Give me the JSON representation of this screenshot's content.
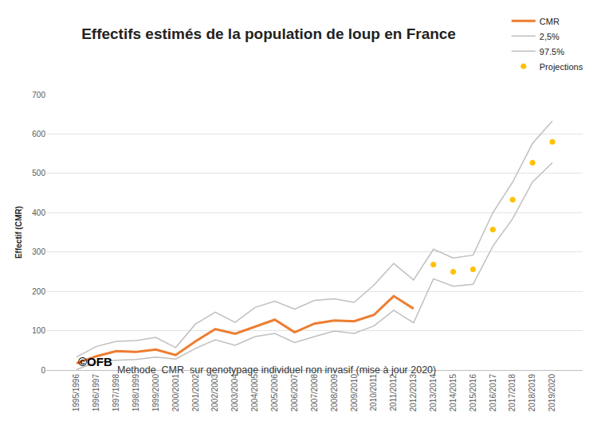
{
  "chart_data": {
    "type": "line",
    "title": "Effectifs estimés de la population de loup en France",
    "subtitle": "Methode  CMR  sur genotypage individuel non invasif (mise à jour 2020)",
    "y_label": "Effectif (CMR)",
    "annotation": "©OFB",
    "categories": [
      "1995/1996",
      "1996/1997",
      "1997/1998",
      "1998/1999",
      "1999/2000",
      "2000/2001",
      "2001/2002",
      "2002/2003",
      "2003/2004",
      "2004/2005",
      "2005/2006",
      "2006/2007",
      "2007/2008",
      "2008/2009",
      "2009/2010",
      "2010/2011",
      "2011/2012",
      "2012/2013",
      "2013/2014",
      "2014/2015",
      "2015/2016",
      "2016/2017",
      "2017/2018",
      "2018/2019",
      "2019/2020"
    ],
    "series": [
      {
        "name": "CMR",
        "type": "line",
        "color": "#ED7D31",
        "line_style": "solid",
        "values": [
          17,
          35,
          48,
          46,
          52,
          38,
          73,
          104,
          92,
          110,
          128,
          96,
          118,
          126,
          124,
          140,
          188,
          156,
          null,
          null,
          null,
          null,
          null,
          null,
          null
        ]
      },
      {
        "name": "2,5%",
        "type": "line",
        "color": "#BFBFBF",
        "line_style": "solid",
        "values": [
          1,
          20,
          25,
          27,
          33,
          28,
          55,
          77,
          63,
          85,
          93,
          70,
          85,
          99,
          93,
          112,
          152,
          120,
          232,
          213,
          218,
          315,
          385,
          478,
          527
        ]
      },
      {
        "name": "97.5%",
        "type": "line",
        "color": "#BFBFBF",
        "line_style": "solid",
        "values": [
          33,
          60,
          73,
          75,
          83,
          57,
          117,
          147,
          121,
          159,
          175,
          155,
          177,
          181,
          172,
          216,
          271,
          229,
          307,
          285,
          292,
          400,
          478,
          576,
          633
        ]
      },
      {
        "name": "Projections",
        "type": "scatter",
        "color": "#FFC000",
        "marker": "circle",
        "values": [
          null,
          null,
          null,
          null,
          null,
          null,
          null,
          null,
          null,
          null,
          null,
          null,
          null,
          null,
          null,
          null,
          null,
          null,
          268,
          250,
          256,
          357,
          433,
          527,
          580
        ]
      }
    ],
    "ylim": [
      0,
      700
    ],
    "yticks": [
      0,
      100,
      200,
      300,
      400,
      500,
      600,
      700
    ],
    "grid": true,
    "legend": "top right"
  }
}
